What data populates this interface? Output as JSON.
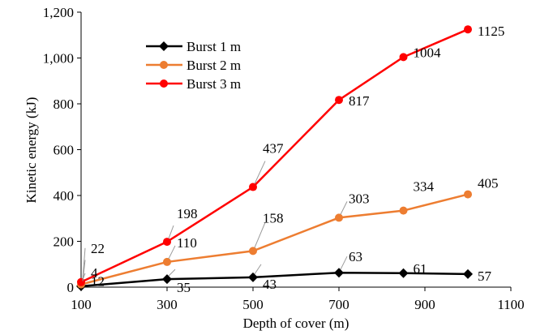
{
  "chart_data": {
    "type": "line",
    "xlabel": "Depth of cover (m)",
    "ylabel": "Kinetic energy (kJ)",
    "xlim": [
      100,
      1100
    ],
    "ylim": [
      0,
      1200
    ],
    "x_ticks": [
      "100",
      "300",
      "500",
      "700",
      "900",
      "1100"
    ],
    "y_ticks": [
      "0",
      "200",
      "400",
      "600",
      "800",
      "1,000",
      "1,200"
    ],
    "x": [
      100,
      300,
      500,
      700,
      850,
      1000
    ],
    "grid": false,
    "legend_position": "top-left",
    "series": [
      {
        "name": "Burst 1 m",
        "color": "#000000",
        "marker": "diamond",
        "values": [
          4,
          35,
          43,
          63,
          61,
          57
        ],
        "labels": [
          "4",
          "35",
          "43",
          "63",
          "61",
          "57"
        ]
      },
      {
        "name": "Burst 2 m",
        "color": "#ED7D31",
        "marker": "circle",
        "values": [
          12,
          110,
          158,
          303,
          334,
          405
        ],
        "labels": [
          "12",
          "110",
          "158",
          "303",
          "334",
          "405"
        ]
      },
      {
        "name": "Burst 3 m",
        "color": "#FF0000",
        "marker": "circle",
        "values": [
          22,
          198,
          437,
          817,
          1004,
          1125
        ],
        "labels": [
          "22",
          "198",
          "437",
          "817",
          "1004",
          "1125"
        ]
      }
    ]
  }
}
